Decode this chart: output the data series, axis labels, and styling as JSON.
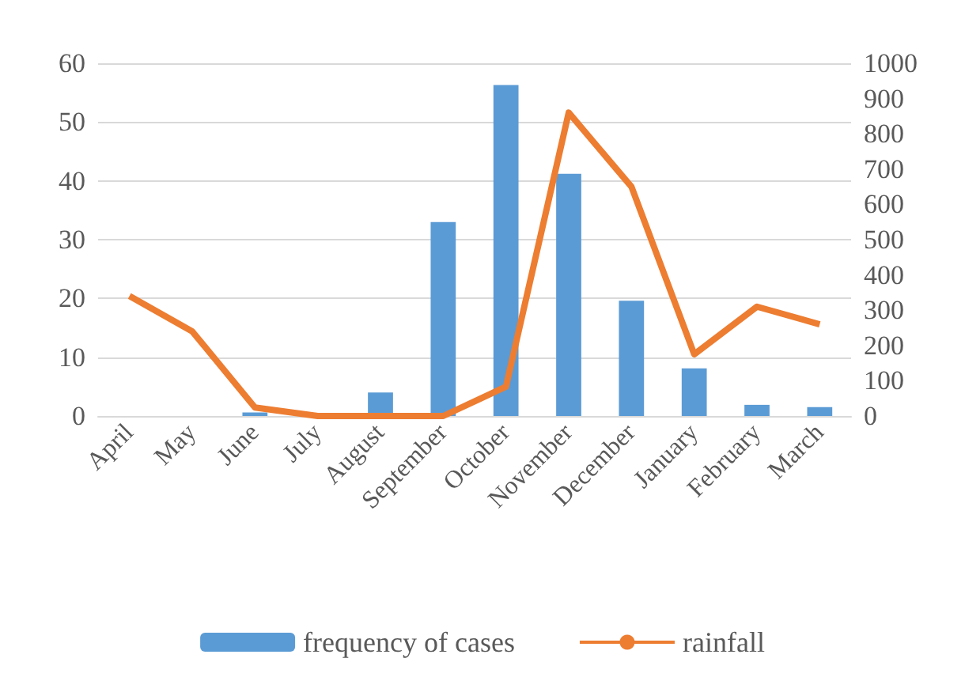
{
  "chart_data": {
    "type": "bar",
    "categories": [
      "April",
      "May",
      "June",
      "July",
      "August",
      "September",
      "October",
      "November",
      "December",
      "January",
      "February",
      "March"
    ],
    "series": [
      {
        "name": "frequency of cases",
        "color": "#5b9bd5",
        "values": [
          0,
          0,
          0.6,
          0,
          4,
          33,
          56.3,
          41.2,
          19.6,
          8.1,
          1.9,
          1.5
        ]
      },
      {
        "name": "rainfall",
        "type": "line",
        "axis": "y2",
        "color": "#ed7d31",
        "values": [
          340,
          240,
          24,
          0,
          0,
          0,
          83,
          860,
          650,
          175,
          310,
          260
        ]
      }
    ],
    "ylim": [
      0,
      60
    ],
    "yticks": [
      0,
      10,
      20,
      30,
      40,
      50,
      60
    ],
    "y2lim": [
      0,
      1000
    ],
    "y2ticks": [
      0,
      100,
      200,
      300,
      400,
      500,
      600,
      700,
      800,
      900,
      1000
    ],
    "grid": "y",
    "legend": "bottom",
    "marker": "none"
  }
}
